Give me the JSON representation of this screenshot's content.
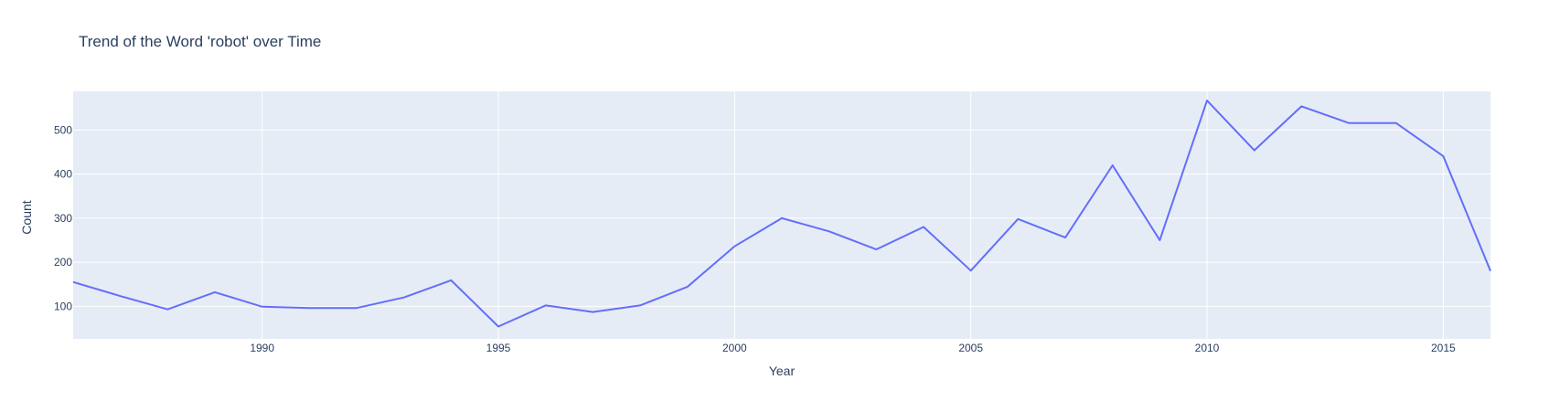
{
  "chart_data": {
    "type": "line",
    "title": "Trend of the Word 'robot' over Time",
    "xlabel": "Year",
    "ylabel": "Count",
    "xlim": [
      1986,
      2016
    ],
    "ylim": [
      26,
      588
    ],
    "x_ticks": [
      1990,
      1995,
      2000,
      2005,
      2010,
      2015
    ],
    "y_ticks": [
      100,
      200,
      300,
      400,
      500
    ],
    "grid": true,
    "legend": "none",
    "colors": {
      "line": "#636efa",
      "plot_bg": "#e5ecf6",
      "grid": "#ffffff",
      "text": "#2a3f5f"
    },
    "series": [
      {
        "x": [
          1986,
          1987,
          1988,
          1989,
          1990,
          1991,
          1992,
          1993,
          1994,
          1995,
          1996,
          1997,
          1998,
          1999,
          2000,
          2001,
          2002,
          2003,
          2004,
          2005,
          2006,
          2007,
          2008,
          2009,
          2010,
          2011,
          2012,
          2013,
          2014,
          2015,
          2016
        ],
        "values": [
          155,
          123,
          93,
          132,
          99,
          96,
          96,
          120,
          159,
          54,
          102,
          87,
          102,
          144,
          236,
          300,
          270,
          229,
          280,
          181,
          298,
          256,
          420,
          250,
          567,
          454,
          554,
          516,
          516,
          441,
          180
        ]
      }
    ]
  }
}
